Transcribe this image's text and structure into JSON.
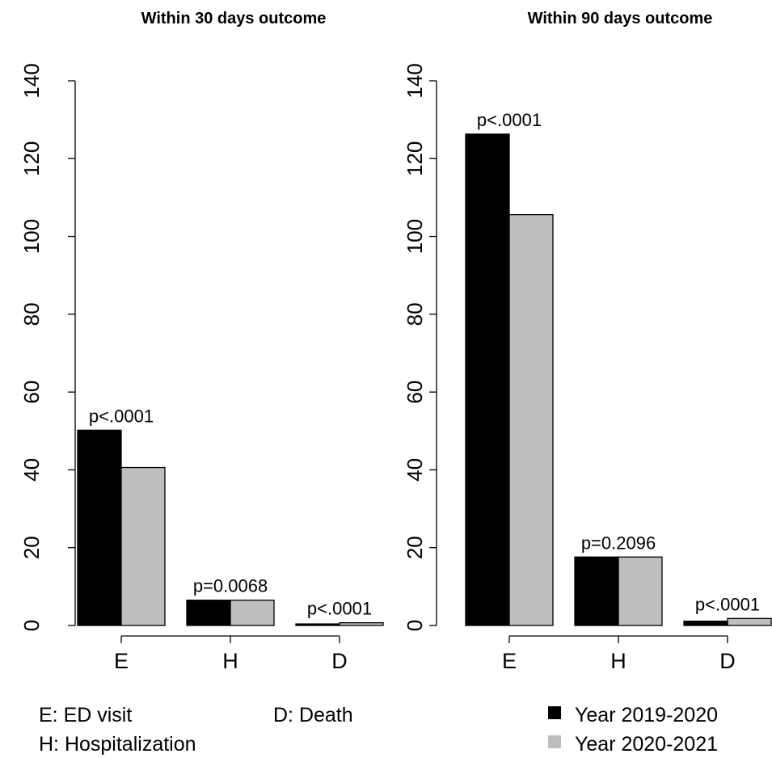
{
  "chart_data": [
    {
      "type": "bar",
      "title": "Within 30 days outcome",
      "categories": [
        "E",
        "H",
        "D"
      ],
      "series": [
        {
          "name": "Year 2019-2020",
          "values": [
            50.2,
            6.5,
            0.4
          ]
        },
        {
          "name": "Year 2020-2021",
          "values": [
            40.6,
            6.5,
            0.7
          ]
        }
      ],
      "p_values": [
        "p<.0001",
        "p=0.0068",
        "p<.0001"
      ],
      "ylim": [
        0,
        140
      ],
      "yticks": [
        "0",
        "20",
        "40",
        "60",
        "80",
        "100",
        "120",
        "140"
      ],
      "xlabel": "",
      "ylabel": ""
    },
    {
      "type": "bar",
      "title": "Within 90 days outcome",
      "categories": [
        "E",
        "H",
        "D"
      ],
      "series": [
        {
          "name": "Year 2019-2020",
          "values": [
            126.3,
            17.6,
            1.1
          ]
        },
        {
          "name": "Year 2020-2021",
          "values": [
            105.6,
            17.6,
            1.8
          ]
        }
      ],
      "p_values": [
        "p<.0001",
        "p=0.2096",
        "p<.0001"
      ],
      "ylim": [
        0,
        140
      ],
      "yticks": [
        "0",
        "20",
        "40",
        "60",
        "80",
        "100",
        "120",
        "140"
      ],
      "xlabel": "",
      "ylabel": ""
    }
  ],
  "series_colors": [
    "#000000",
    "#bebebe"
  ],
  "key": {
    "items": [
      "E: ED visit",
      "H: Hospitalization",
      "D: Death"
    ]
  },
  "legend": {
    "placement": "bottom-right",
    "items": [
      {
        "label": "Year 2019-2020",
        "color": "#000000"
      },
      {
        "label": "Year 2020-2021",
        "color": "#bebebe"
      }
    ]
  }
}
